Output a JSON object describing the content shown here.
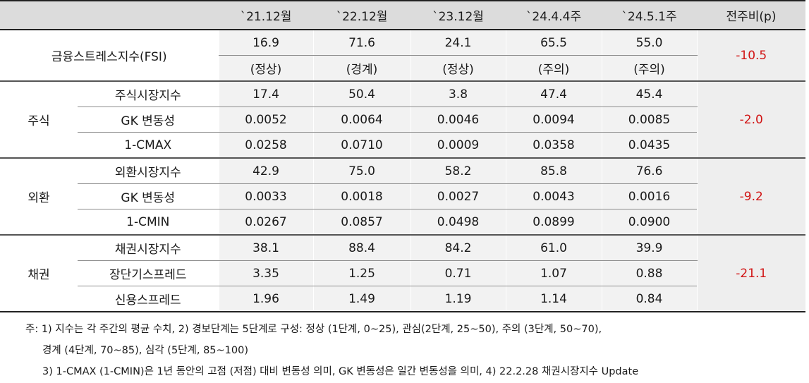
{
  "header": {
    "col1": "",
    "col2": "",
    "periods": [
      "`21.12월",
      "`22.12월",
      "`23.12월",
      "`24.4.4주",
      "`24.5.1주"
    ],
    "change": "전주비(p)"
  },
  "fsi": {
    "label": "금융스트레스지수(FSI)",
    "values": [
      "16.9",
      "71.6",
      "24.1",
      "65.5",
      "55.0"
    ],
    "levels": [
      "(정상)",
      "(경계)",
      "(정상)",
      "(주의)",
      "(주의)"
    ],
    "change": "-10.5"
  },
  "groups": [
    {
      "category": "주식",
      "change": "-2.0",
      "rows": [
        {
          "label": "주식시장지수",
          "values": [
            "17.4",
            "50.4",
            "3.8",
            "47.4",
            "45.4"
          ]
        },
        {
          "label": "GK 변동성",
          "values": [
            "0.0052",
            "0.0064",
            "0.0046",
            "0.0094",
            "0.0085"
          ]
        },
        {
          "label": "1-CMAX",
          "values": [
            "0.0258",
            "0.0710",
            "0.0009",
            "0.0358",
            "0.0435"
          ]
        }
      ]
    },
    {
      "category": "외환",
      "change": "-9.2",
      "rows": [
        {
          "label": "외환시장지수",
          "values": [
            "42.9",
            "75.0",
            "58.2",
            "85.8",
            "76.6"
          ]
        },
        {
          "label": "GK 변동성",
          "values": [
            "0.0033",
            "0.0018",
            "0.0027",
            "0.0043",
            "0.0016"
          ]
        },
        {
          "label": "1-CMIN",
          "values": [
            "0.0267",
            "0.0857",
            "0.0498",
            "0.0899",
            "0.0900"
          ]
        }
      ]
    },
    {
      "category": "채권",
      "change": "-21.1",
      "rows": [
        {
          "label": "채권시장지수",
          "values": [
            "38.1",
            "88.4",
            "84.2",
            "61.0",
            "39.9"
          ]
        },
        {
          "label": "장단기스프레드",
          "values": [
            "3.35",
            "1.25",
            "0.71",
            "1.07",
            "0.88"
          ]
        },
        {
          "label": "신용스프레드",
          "values": [
            "1.96",
            "1.49",
            "1.19",
            "1.14",
            "0.84"
          ]
        }
      ]
    }
  ],
  "notes": {
    "line1": "주: 1) 지수는 각 주간의 평균 수치, 2) 경보단계는 5단계로 구성: 정상 (1단계, 0~25), 관심(2단계, 25~50), 주의 (3단계, 50~70),",
    "line2": "경계 (4단계, 70~85), 심각 (5단계, 85~100)",
    "line3": "3) 1-CMAX (1-CMIN)은 1년 동안의 고점 (저점) 대비 변동성 의미, GK 변동성은 일간 변동성을 의미, 4) 22.2.28 채권시장지수 Update"
  },
  "colors": {
    "header_bg": "#dcdcdc",
    "value_bg": "#f2f2f2",
    "change_bg": "#eeeeee",
    "negative": "#d11414"
  }
}
